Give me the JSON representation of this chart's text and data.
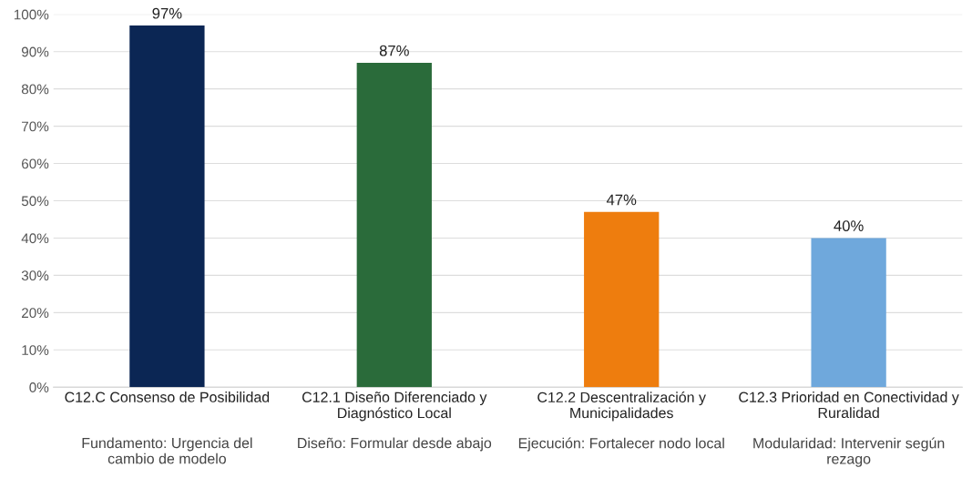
{
  "chart_data": {
    "type": "bar",
    "categories": [
      "C12.C Consenso de Posibilidad",
      "C12.1 Diseño Diferenciado y\nDiagnóstico Local",
      "C12.2 Descentralización y\nMunicipalidades",
      "C12.3 Prioridad en Conectividad y\nRuralidad"
    ],
    "values": [
      97,
      87,
      47,
      40
    ],
    "colors": [
      "#0b2654",
      "#2a6b3a",
      "#ee7d0e",
      "#6fa8dc"
    ],
    "value_labels": [
      "97%",
      "87%",
      "47%",
      "40%"
    ],
    "ylim": [
      0,
      100
    ],
    "yticks": [
      {
        "value": 0,
        "label": "0%"
      },
      {
        "value": 10,
        "label": "10%"
      },
      {
        "value": 20,
        "label": "20%"
      },
      {
        "value": 30,
        "label": "30%"
      },
      {
        "value": 40,
        "label": "40%"
      },
      {
        "value": 50,
        "label": "50%"
      },
      {
        "value": 60,
        "label": "60%"
      },
      {
        "value": 70,
        "label": "70%"
      },
      {
        "value": 80,
        "label": "80%"
      },
      {
        "value": 90,
        "label": "90%"
      },
      {
        "value": 100,
        "label": "100%"
      }
    ],
    "grid": "y",
    "annotations": [
      "Fundamento: Urgencia del\ncambio de modelo",
      "Diseño: Formular desde abajo",
      "Ejecución: Fortalecer nodo local",
      "Modularidad: Intervenir según\nrezago"
    ]
  }
}
